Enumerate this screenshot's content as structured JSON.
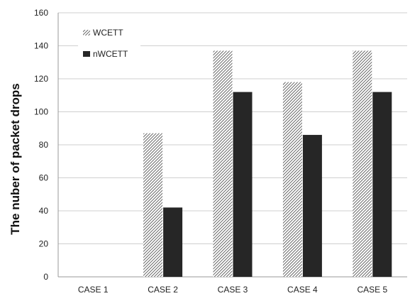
{
  "chart_data": {
    "type": "bar",
    "title": "",
    "xlabel": "",
    "ylabel": "The nuber of  packet drops",
    "categories": [
      "CASE 1",
      "CASE 2",
      "CASE 3",
      "CASE 4",
      "CASE 5"
    ],
    "series": [
      {
        "name": "WCETT",
        "values": [
          0,
          87,
          137,
          118,
          137
        ],
        "color": "#555555",
        "pattern": "diagonal-hatch"
      },
      {
        "name": "nWCETT",
        "values": [
          0,
          42,
          112,
          86,
          112
        ],
        "color": "#262626",
        "pattern": "solid"
      }
    ],
    "ylim": [
      0,
      160
    ],
    "yticks": [
      0,
      20,
      40,
      60,
      80,
      100,
      120,
      140,
      160
    ],
    "grid": true,
    "legend_position": "top-left"
  }
}
